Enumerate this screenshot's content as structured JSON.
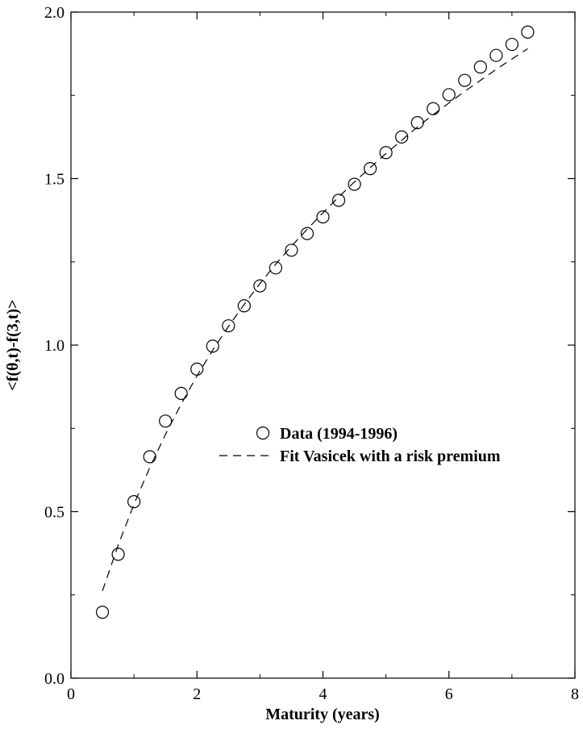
{
  "chart_data": {
    "type": "scatter",
    "title": "",
    "xlabel": "Maturity (years)",
    "ylabel": "<f(θ,t)-f(3,t)>",
    "xlim": [
      0,
      8
    ],
    "ylim": [
      0,
      2
    ],
    "x_ticks": [
      "0",
      "2",
      "4",
      "6",
      "8"
    ],
    "y_ticks": [
      "0.0",
      "0.5",
      "1.0",
      "1.5",
      "2.0"
    ],
    "x_tick_values": [
      0,
      2,
      4,
      6,
      8
    ],
    "y_tick_values": [
      0,
      0.5,
      1.0,
      1.5,
      2.0
    ],
    "grid": false,
    "legend_position": "center-right",
    "series": [
      {
        "name": "Data (1994-1996)",
        "style": "open-circle",
        "x": [
          0.5,
          0.75,
          1.0,
          1.25,
          1.5,
          1.75,
          2.0,
          2.25,
          2.5,
          2.75,
          3.0,
          3.25,
          3.5,
          3.75,
          4.0,
          4.25,
          4.5,
          4.75,
          5.0,
          5.25,
          5.5,
          5.75,
          6.0,
          6.25,
          6.5,
          6.75,
          7.0,
          7.25
        ],
        "y": [
          0.198,
          0.372,
          0.53,
          0.665,
          0.772,
          0.855,
          0.928,
          0.997,
          1.058,
          1.118,
          1.178,
          1.232,
          1.285,
          1.335,
          1.385,
          1.435,
          1.483,
          1.53,
          1.578,
          1.625,
          1.668,
          1.71,
          1.752,
          1.795,
          1.835,
          1.87,
          1.903,
          1.94
        ]
      },
      {
        "name": "Fit Vasicek with a risk premium",
        "style": "dashed-line",
        "x": [
          0.5,
          0.75,
          1.0,
          1.25,
          1.5,
          1.75,
          2.0,
          2.25,
          2.5,
          2.75,
          3.0,
          3.25,
          3.5,
          3.75,
          4.0,
          4.25,
          4.5,
          4.75,
          5.0,
          5.25,
          5.5,
          5.75,
          6.0,
          6.25,
          6.5,
          6.75,
          7.0,
          7.25
        ],
        "y": [
          0.262,
          0.4,
          0.522,
          0.632,
          0.732,
          0.823,
          0.908,
          0.985,
          1.056,
          1.122,
          1.185,
          1.243,
          1.297,
          1.348,
          1.397,
          1.445,
          1.49,
          1.533,
          1.575,
          1.615,
          1.655,
          1.692,
          1.727,
          1.762,
          1.795,
          1.828,
          1.859,
          1.89
        ]
      }
    ]
  }
}
